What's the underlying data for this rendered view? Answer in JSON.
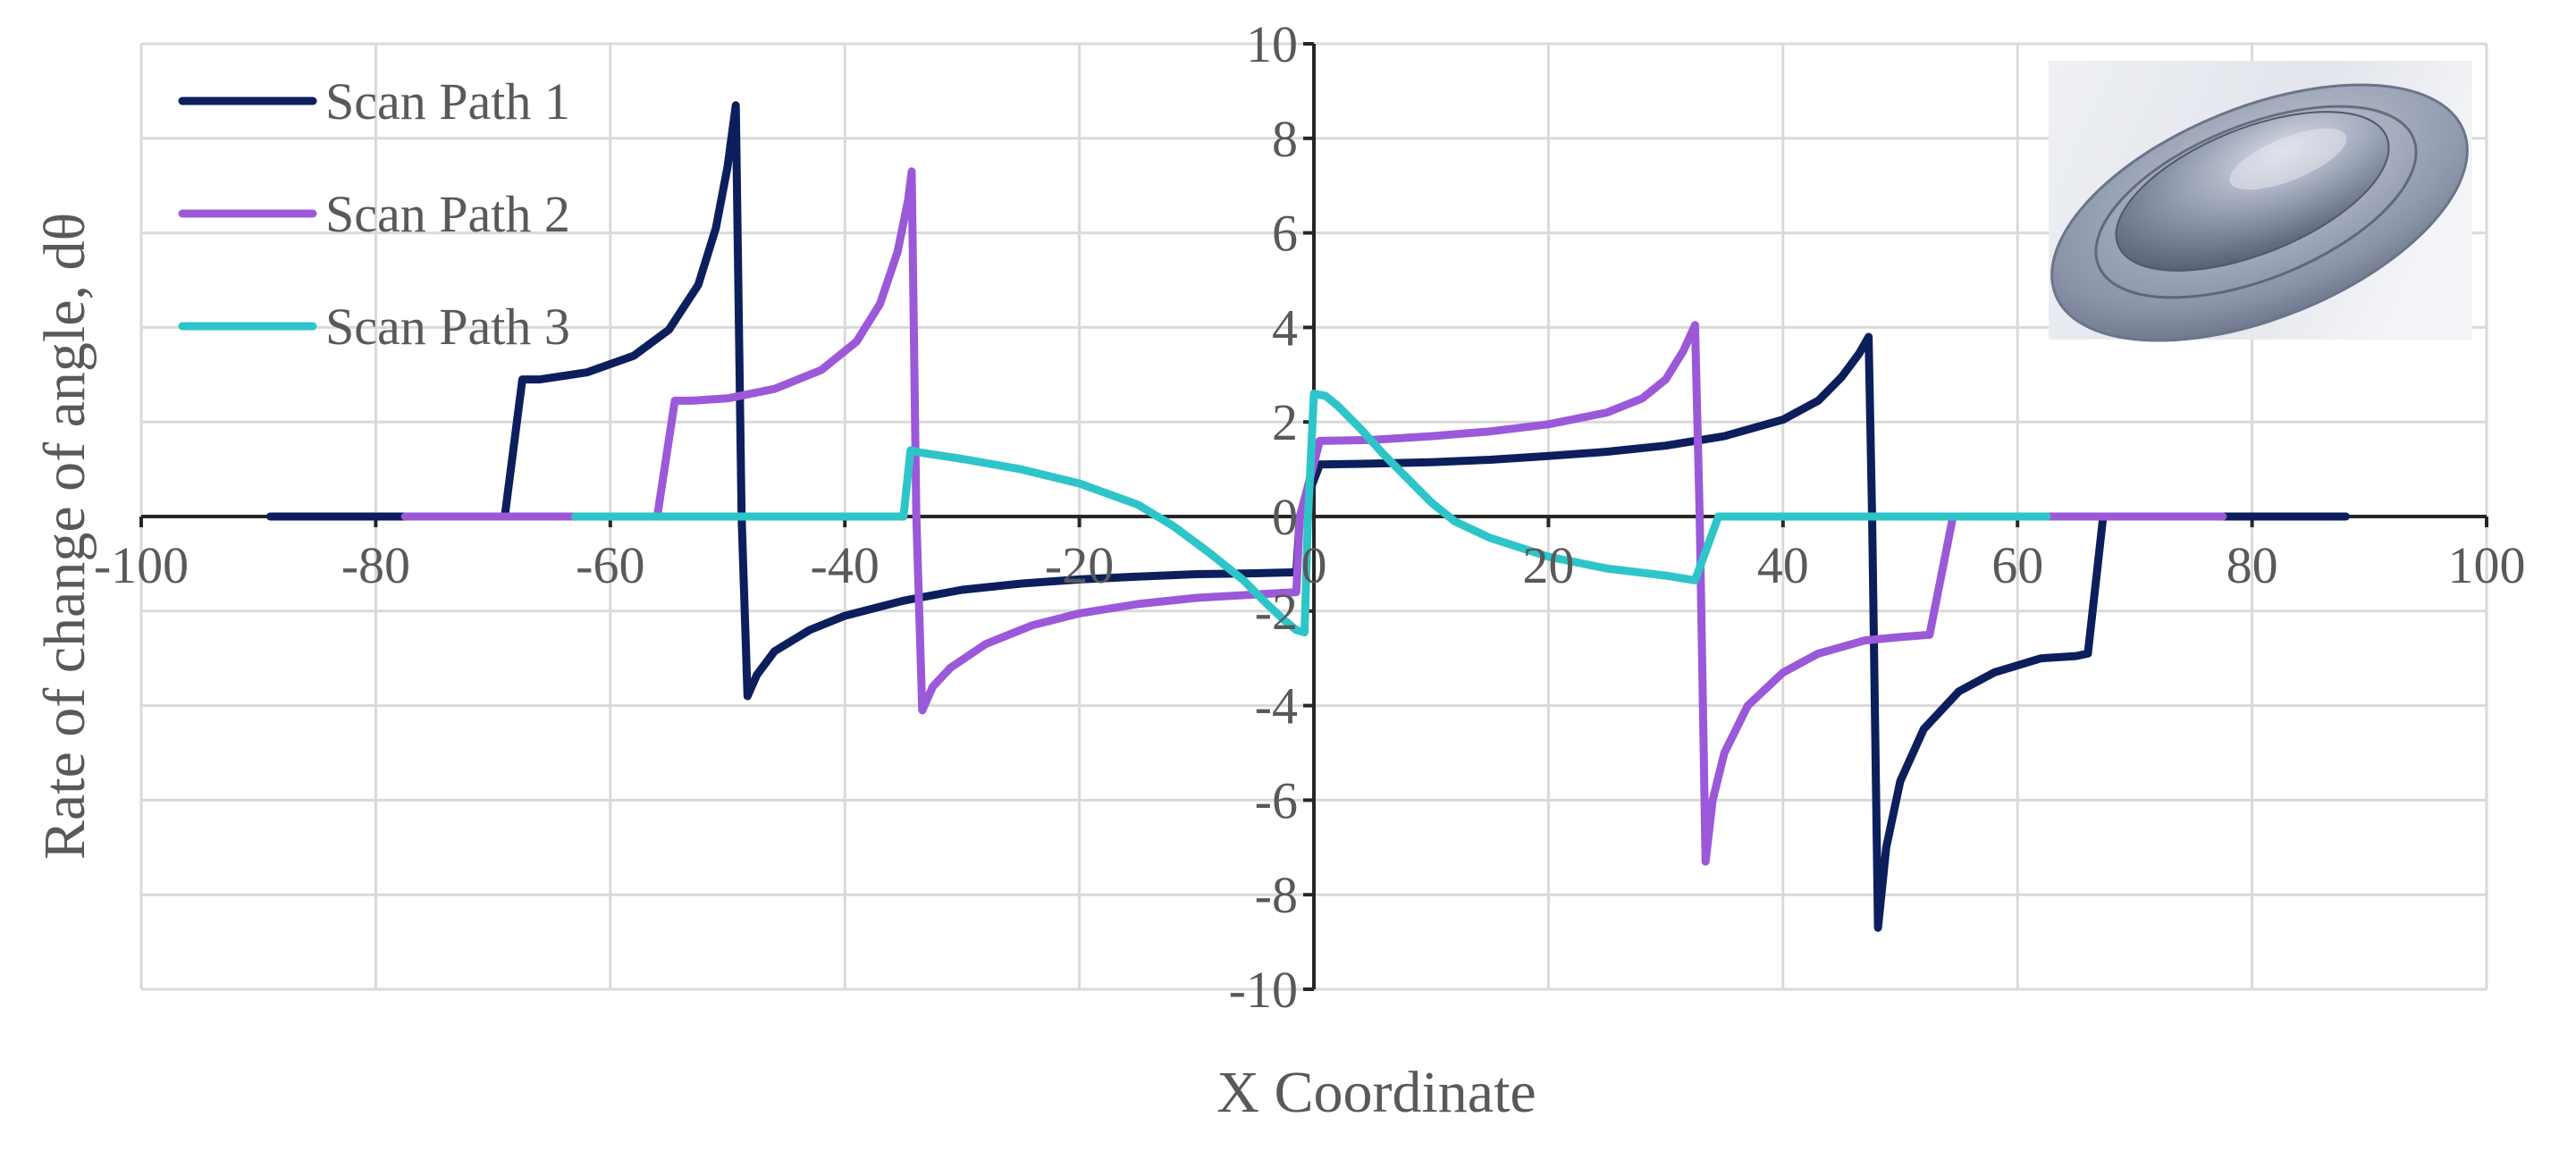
{
  "chart_data": {
    "type": "line",
    "xlabel": "X Coordinate",
    "ylabel": "Rate of change of angle, dθ",
    "xlim": [
      -100,
      100
    ],
    "ylim": [
      -10,
      10
    ],
    "x_ticks": [
      -100,
      -80,
      -60,
      -40,
      -20,
      0,
      20,
      40,
      60,
      80,
      100
    ],
    "y_ticks": [
      -10,
      -8,
      -6,
      -4,
      -2,
      0,
      2,
      4,
      6,
      8,
      10
    ],
    "x_tick_labels": [
      "-100",
      "-80",
      "-60",
      "-40",
      "-20",
      "0",
      "20",
      "40",
      "60",
      "80",
      "100"
    ],
    "y_tick_labels": [
      "-10",
      "-8",
      "-6",
      "-4",
      "-2",
      "0",
      "2",
      "4",
      "6",
      "8",
      "10"
    ],
    "grid": true,
    "legend_position": "top-left",
    "inset_image": "ellipsoidal-dome-3d-render",
    "series": [
      {
        "name": "Scan Path 1",
        "color": "#0c1f5c",
        "points": [
          [
            -89,
            0
          ],
          [
            -69,
            0
          ],
          [
            -67.5,
            2.9
          ],
          [
            -66,
            2.9
          ],
          [
            -62,
            3.05
          ],
          [
            -58,
            3.4
          ],
          [
            -55,
            3.95
          ],
          [
            -52.5,
            4.9
          ],
          [
            -51,
            6.1
          ],
          [
            -50,
            7.4
          ],
          [
            -49.3,
            8.7
          ],
          [
            -48.8,
            0
          ],
          [
            -48.3,
            -3.8
          ],
          [
            -47.5,
            -3.35
          ],
          [
            -46,
            -2.85
          ],
          [
            -43,
            -2.4
          ],
          [
            -40,
            -2.1
          ],
          [
            -35,
            -1.78
          ],
          [
            -30,
            -1.55
          ],
          [
            -25,
            -1.42
          ],
          [
            -20,
            -1.33
          ],
          [
            -15,
            -1.27
          ],
          [
            -10,
            -1.22
          ],
          [
            -5,
            -1.2
          ],
          [
            -1.5,
            -1.18
          ],
          [
            -1.2,
            0
          ],
          [
            0.5,
            1.1
          ],
          [
            5,
            1.12
          ],
          [
            10,
            1.15
          ],
          [
            15,
            1.2
          ],
          [
            20,
            1.28
          ],
          [
            25,
            1.37
          ],
          [
            30,
            1.5
          ],
          [
            35,
            1.7
          ],
          [
            40,
            2.05
          ],
          [
            43,
            2.45
          ],
          [
            45,
            2.95
          ],
          [
            46.5,
            3.45
          ],
          [
            47.3,
            3.8
          ],
          [
            47.6,
            0
          ],
          [
            48.1,
            -8.7
          ],
          [
            48.8,
            -7.0
          ],
          [
            50,
            -5.6
          ],
          [
            52,
            -4.5
          ],
          [
            55,
            -3.7
          ],
          [
            58,
            -3.3
          ],
          [
            62,
            -3.0
          ],
          [
            65,
            -2.95
          ],
          [
            66,
            -2.9
          ],
          [
            67.3,
            0
          ],
          [
            88,
            0
          ]
        ]
      },
      {
        "name": "Scan Path 2",
        "color": "#9b59d9",
        "points": [
          [
            -77.5,
            0
          ],
          [
            -56,
            0
          ],
          [
            -54.5,
            2.45
          ],
          [
            -53,
            2.45
          ],
          [
            -50,
            2.5
          ],
          [
            -46,
            2.7
          ],
          [
            -42,
            3.1
          ],
          [
            -39,
            3.7
          ],
          [
            -37,
            4.5
          ],
          [
            -35.5,
            5.6
          ],
          [
            -34.6,
            6.7
          ],
          [
            -34.3,
            7.3
          ],
          [
            -33.9,
            0
          ],
          [
            -33.4,
            -4.1
          ],
          [
            -32.5,
            -3.6
          ],
          [
            -31,
            -3.2
          ],
          [
            -28,
            -2.7
          ],
          [
            -24,
            -2.3
          ],
          [
            -20,
            -2.05
          ],
          [
            -15,
            -1.85
          ],
          [
            -10,
            -1.72
          ],
          [
            -5,
            -1.65
          ],
          [
            -1.5,
            -1.6
          ],
          [
            -1.2,
            0
          ],
          [
            0.5,
            1.6
          ],
          [
            5,
            1.62
          ],
          [
            10,
            1.7
          ],
          [
            15,
            1.8
          ],
          [
            20,
            1.95
          ],
          [
            25,
            2.2
          ],
          [
            28,
            2.5
          ],
          [
            30,
            2.9
          ],
          [
            31.5,
            3.5
          ],
          [
            32.5,
            4.05
          ],
          [
            32.9,
            0
          ],
          [
            33.4,
            -7.3
          ],
          [
            34,
            -6.0
          ],
          [
            35,
            -5.0
          ],
          [
            37,
            -4.0
          ],
          [
            40,
            -3.3
          ],
          [
            43,
            -2.9
          ],
          [
            47,
            -2.62
          ],
          [
            50,
            -2.55
          ],
          [
            52.5,
            -2.5
          ],
          [
            54.5,
            0
          ],
          [
            77.5,
            0
          ]
        ]
      },
      {
        "name": "Scan Path 3",
        "color": "#2ec5c9",
        "points": [
          [
            -63,
            0
          ],
          [
            -35,
            0
          ],
          [
            -34.4,
            1.4
          ],
          [
            -33.5,
            1.35
          ],
          [
            -30,
            1.22
          ],
          [
            -25,
            1.0
          ],
          [
            -20,
            0.7
          ],
          [
            -15,
            0.25
          ],
          [
            -12,
            -0.2
          ],
          [
            -9,
            -0.75
          ],
          [
            -6,
            -1.35
          ],
          [
            -4,
            -1.85
          ],
          [
            -2.5,
            -2.2
          ],
          [
            -1.5,
            -2.4
          ],
          [
            -0.8,
            -2.45
          ],
          [
            -0.5,
            0
          ],
          [
            0,
            2.6
          ],
          [
            1,
            2.55
          ],
          [
            2,
            2.35
          ],
          [
            4,
            1.85
          ],
          [
            6,
            1.3
          ],
          [
            8,
            0.8
          ],
          [
            10,
            0.3
          ],
          [
            12,
            -0.1
          ],
          [
            15,
            -0.45
          ],
          [
            20,
            -0.85
          ],
          [
            25,
            -1.1
          ],
          [
            30,
            -1.25
          ],
          [
            32.5,
            -1.35
          ],
          [
            34.5,
            0
          ],
          [
            35,
            0
          ],
          [
            62.5,
            0
          ]
        ]
      }
    ]
  }
}
